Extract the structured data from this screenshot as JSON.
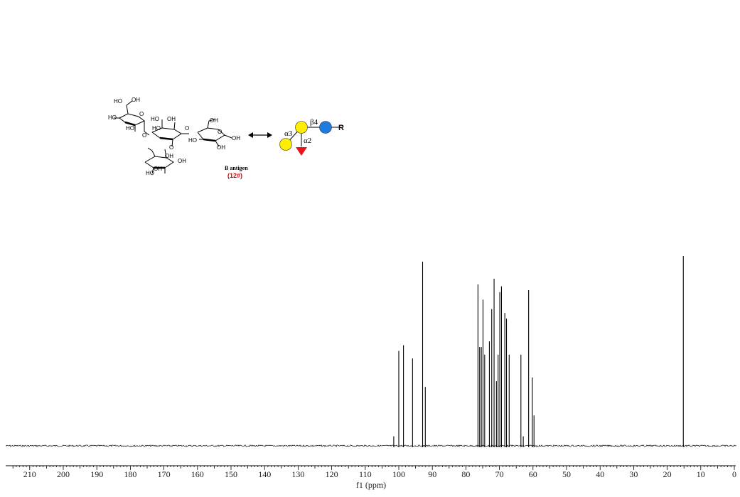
{
  "molecule": {
    "name": "B antigen",
    "id_label": "(12#)",
    "id_color": "#e00000",
    "hydroxyls": [
      "HO",
      "OH",
      "HO",
      "HO",
      "HO",
      "OH",
      "O",
      "HO",
      "O",
      "OH",
      "O",
      "O",
      "HO",
      "OH",
      "OH",
      "O",
      "OH",
      "HO",
      "OH",
      "OH"
    ],
    "arrow": "double-headed-arrow"
  },
  "glycan": {
    "linkage_beta4": "β4",
    "linkage_alpha3": "α3",
    "linkage_alpha2": "α2",
    "aglycone": "R",
    "colors": {
      "galactose": "#ffee00",
      "glucose": "#1e7be0",
      "fucose": "#e8141c"
    }
  },
  "chart_data": {
    "type": "line",
    "xlabel": "f1 (ppm)",
    "x_reversed": true,
    "xlim": [
      0,
      215
    ],
    "ticks": [
      210,
      200,
      190,
      180,
      170,
      160,
      150,
      140,
      130,
      120,
      110,
      100,
      90,
      80,
      70,
      60,
      50,
      40,
      30,
      20,
      10,
      0
    ],
    "grid": false,
    "series": [
      {
        "peaks": [
          {
            "ppm": 101.5,
            "intensity": 0.05
          },
          {
            "ppm": 100.0,
            "intensity": 0.5
          },
          {
            "ppm": 98.6,
            "intensity": 0.53
          },
          {
            "ppm": 95.9,
            "intensity": 0.46
          },
          {
            "ppm": 92.9,
            "intensity": 0.97
          },
          {
            "ppm": 92.1,
            "intensity": 0.31
          },
          {
            "ppm": 76.4,
            "intensity": 0.85
          },
          {
            "ppm": 75.9,
            "intensity": 0.52
          },
          {
            "ppm": 75.4,
            "intensity": 0.52
          },
          {
            "ppm": 74.9,
            "intensity": 0.77
          },
          {
            "ppm": 74.4,
            "intensity": 0.48
          },
          {
            "ppm": 73.0,
            "intensity": 0.55
          },
          {
            "ppm": 72.3,
            "intensity": 0.72
          },
          {
            "ppm": 71.6,
            "intensity": 0.88
          },
          {
            "ppm": 70.9,
            "intensity": 0.34
          },
          {
            "ppm": 70.4,
            "intensity": 0.48
          },
          {
            "ppm": 69.9,
            "intensity": 0.81
          },
          {
            "ppm": 69.4,
            "intensity": 0.84
          },
          {
            "ppm": 68.4,
            "intensity": 0.7
          },
          {
            "ppm": 67.9,
            "intensity": 0.67
          },
          {
            "ppm": 67.1,
            "intensity": 0.48
          },
          {
            "ppm": 63.6,
            "intensity": 0.48
          },
          {
            "ppm": 62.9,
            "intensity": 0.05
          },
          {
            "ppm": 61.3,
            "intensity": 0.82
          },
          {
            "ppm": 60.2,
            "intensity": 0.36
          },
          {
            "ppm": 59.7,
            "intensity": 0.16
          },
          {
            "ppm": 15.2,
            "intensity": 1.0
          }
        ]
      }
    ]
  }
}
